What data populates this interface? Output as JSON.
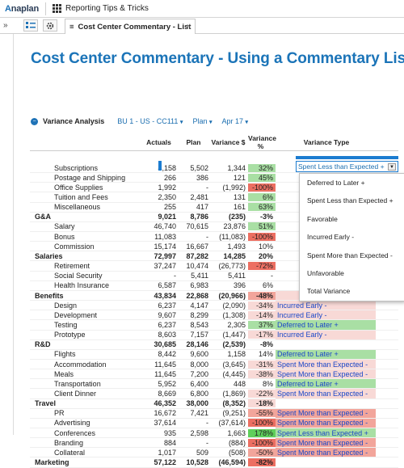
{
  "app": {
    "logo_a": "A",
    "logo_rest": "naplan",
    "title": "Reporting Tips & Tricks"
  },
  "tab": {
    "label": "Cost Center Commentary - List"
  },
  "page": {
    "title": "Cost Center Commentary - Using a Commentary List"
  },
  "filters": {
    "section": "Variance Analysis",
    "bu": "BU 1 - US - CC111",
    "version": "Plan",
    "period": "Apr 17"
  },
  "columns": [
    "Actuals",
    "Plan",
    "Variance $",
    "Variance %",
    "Variance Type"
  ],
  "selected_cell": "Spent Less than Expected +",
  "dropdown_options": [
    "Deferred to Later +",
    "Spent Less than Expected +",
    "Favorable",
    "Incurred Early -",
    "Spent More than Expected -",
    "Unfavorable",
    "Total Variance"
  ],
  "rows": [
    {
      "label": "Subscriptions",
      "indent": 2,
      "bold": false,
      "a": "4,158",
      "p": "5,502",
      "v": "1,344",
      "pct": "32%",
      "pc": "g",
      "t": "",
      "tc": ""
    },
    {
      "label": "Postage and Shipping",
      "indent": 2,
      "bold": false,
      "a": "266",
      "p": "386",
      "v": "121",
      "pct": "45%",
      "pc": "g",
      "t": "",
      "tc": ""
    },
    {
      "label": "Office Supplies",
      "indent": 2,
      "bold": false,
      "a": "1,992",
      "p": "-",
      "v": "(1,992)",
      "pct": "-100%",
      "pc": "rs",
      "t": "",
      "tc": ""
    },
    {
      "label": "Tuition and Fees",
      "indent": 2,
      "bold": false,
      "a": "2,350",
      "p": "2,481",
      "v": "131",
      "pct": "6%",
      "pc": "g",
      "t": "",
      "tc": ""
    },
    {
      "label": "Miscellaneous",
      "indent": 2,
      "bold": false,
      "a": "255",
      "p": "417",
      "v": "161",
      "pct": "63%",
      "pc": "g",
      "t": "",
      "tc": ""
    },
    {
      "label": "G&A",
      "indent": 1,
      "bold": true,
      "a": "9,021",
      "p": "8,786",
      "v": "(235)",
      "pct": "-3%",
      "pc": "",
      "t": "",
      "tc": ""
    },
    {
      "label": "Salary",
      "indent": 2,
      "bold": false,
      "a": "46,740",
      "p": "70,615",
      "v": "23,876",
      "pct": "51%",
      "pc": "g",
      "t": "",
      "tc": ""
    },
    {
      "label": "Bonus",
      "indent": 2,
      "bold": false,
      "a": "11,083",
      "p": "-",
      "v": "(11,083)",
      "pct": "-100%",
      "pc": "rs",
      "t": "",
      "tc": ""
    },
    {
      "label": "Commission",
      "indent": 2,
      "bold": false,
      "a": "15,174",
      "p": "16,667",
      "v": "1,493",
      "pct": "10%",
      "pc": "",
      "t": "",
      "tc": ""
    },
    {
      "label": "Salaries",
      "indent": 1,
      "bold": true,
      "a": "72,997",
      "p": "87,282",
      "v": "14,285",
      "pct": "20%",
      "pc": "",
      "t": "",
      "tc": ""
    },
    {
      "label": "Retirement",
      "indent": 2,
      "bold": false,
      "a": "37,247",
      "p": "10,474",
      "v": "(26,773)",
      "pct": "-72%",
      "pc": "rs",
      "t": "",
      "tc": ""
    },
    {
      "label": "Social Security",
      "indent": 2,
      "bold": false,
      "a": "-",
      "p": "5,411",
      "v": "5,411",
      "pct": "-",
      "pc": "",
      "t": "",
      "tc": ""
    },
    {
      "label": "Health Insurance",
      "indent": 2,
      "bold": false,
      "a": "6,587",
      "p": "6,983",
      "v": "396",
      "pct": "6%",
      "pc": "",
      "t": "",
      "tc": ""
    },
    {
      "label": "Benefits",
      "indent": 1,
      "bold": true,
      "a": "43,834",
      "p": "22,868",
      "v": "(20,966)",
      "pct": "-48%",
      "pc": "r",
      "t": "",
      "tc": "pk"
    },
    {
      "label": "Design",
      "indent": 2,
      "bold": false,
      "a": "6,237",
      "p": "4,147",
      "v": "(2,090)",
      "pct": "-34%",
      "pc": "pk",
      "t": "Incurred Early -",
      "tc": "pk"
    },
    {
      "label": "Development",
      "indent": 2,
      "bold": false,
      "a": "9,607",
      "p": "8,299",
      "v": "(1,308)",
      "pct": "-14%",
      "pc": "pk",
      "t": "Incurred Early -",
      "tc": "pk"
    },
    {
      "label": "Testing",
      "indent": 2,
      "bold": false,
      "a": "6,237",
      "p": "8,543",
      "v": "2,305",
      "pct": "37%",
      "pc": "g",
      "t": "Deferred to Later +",
      "tc": "g"
    },
    {
      "label": "Prototype",
      "indent": 2,
      "bold": false,
      "a": "8,603",
      "p": "7,157",
      "v": "(1,447)",
      "pct": "-17%",
      "pc": "pk",
      "t": "Incurred Early -",
      "tc": "pk"
    },
    {
      "label": "R&D",
      "indent": 1,
      "bold": true,
      "a": "30,685",
      "p": "28,146",
      "v": "(2,539)",
      "pct": "-8%",
      "pc": "",
      "t": "",
      "tc": ""
    },
    {
      "label": "Flights",
      "indent": 2,
      "bold": false,
      "a": "8,442",
      "p": "9,600",
      "v": "1,158",
      "pct": "14%",
      "pc": "",
      "t": "Deferred to Later +",
      "tc": "g"
    },
    {
      "label": "Accommodation",
      "indent": 2,
      "bold": false,
      "a": "11,645",
      "p": "8,000",
      "v": "(3,645)",
      "pct": "-31%",
      "pc": "pk",
      "t": "Spent More than Expected -",
      "tc": "pk"
    },
    {
      "label": "Meals",
      "indent": 2,
      "bold": false,
      "a": "11,645",
      "p": "7,200",
      "v": "(4,445)",
      "pct": "-38%",
      "pc": "pk",
      "t": "Spent More than Expected -",
      "tc": "pk"
    },
    {
      "label": "Transportation",
      "indent": 2,
      "bold": false,
      "a": "5,952",
      "p": "6,400",
      "v": "448",
      "pct": "8%",
      "pc": "",
      "t": "Deferred to Later +",
      "tc": "g"
    },
    {
      "label": "Client Dinner",
      "indent": 2,
      "bold": false,
      "a": "8,669",
      "p": "6,800",
      "v": "(1,869)",
      "pct": "-22%",
      "pc": "pk",
      "t": "Spent More than Expected -",
      "tc": "pk"
    },
    {
      "label": "Travel",
      "indent": 1,
      "bold": true,
      "a": "46,352",
      "p": "38,000",
      "v": "(8,352)",
      "pct": "-18%",
      "pc": "pk",
      "t": "",
      "tc": ""
    },
    {
      "label": "PR",
      "indent": 2,
      "bold": false,
      "a": "16,672",
      "p": "7,421",
      "v": "(9,251)",
      "pct": "-55%",
      "pc": "r",
      "t": "Spent More than Expected -",
      "tc": "r"
    },
    {
      "label": "Advertising",
      "indent": 2,
      "bold": false,
      "a": "37,614",
      "p": "-",
      "v": "(37,614)",
      "pct": "-100%",
      "pc": "rs",
      "t": "Spent More than Expected -",
      "tc": "r"
    },
    {
      "label": "Conferences",
      "indent": 2,
      "bold": false,
      "a": "935",
      "p": "2,598",
      "v": "1,663",
      "pct": "178%",
      "pc": "gs",
      "t": "Spent Less than Expected +",
      "tc": "g"
    },
    {
      "label": "Branding",
      "indent": 2,
      "bold": false,
      "a": "884",
      "p": "-",
      "v": "(884)",
      "pct": "-100%",
      "pc": "rs",
      "t": "Spent More than Expected -",
      "tc": "r"
    },
    {
      "label": "Collateral",
      "indent": 2,
      "bold": false,
      "a": "1,017",
      "p": "509",
      "v": "(508)",
      "pct": "-50%",
      "pc": "r",
      "t": "Spent More than Expected -",
      "tc": "r"
    },
    {
      "label": "Marketing",
      "indent": 1,
      "bold": true,
      "a": "57,122",
      "p": "10,528",
      "v": "(46,594)",
      "pct": "-82%",
      "pc": "rs",
      "t": "",
      "tc": ""
    }
  ]
}
